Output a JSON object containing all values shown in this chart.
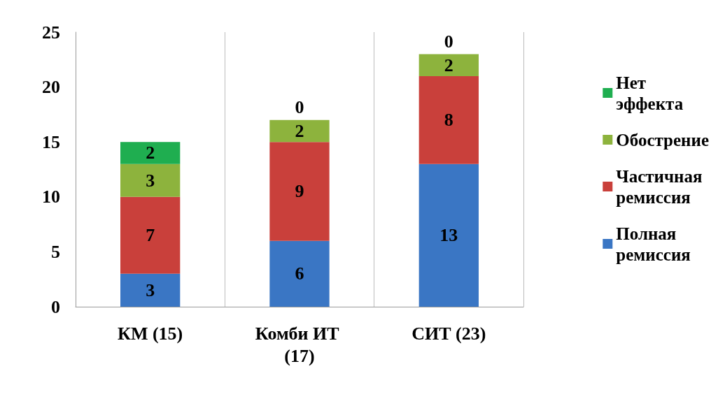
{
  "chart_data": {
    "type": "bar",
    "stacked": true,
    "categories": [
      "КМ (15)",
      "Комби ИТ (17)",
      "СИТ (23)"
    ],
    "series": [
      {
        "name": "Полная ремиссия",
        "color": "#3a76c4",
        "values": [
          3,
          6,
          13
        ]
      },
      {
        "name": "Частичная ремиссия",
        "color": "#c9403b",
        "values": [
          7,
          9,
          8
        ]
      },
      {
        "name": "Обострение",
        "color": "#8db33d",
        "values": [
          3,
          2,
          2
        ]
      },
      {
        "name": "Нет эффекта",
        "color": "#1fae50",
        "values": [
          2,
          0,
          0
        ]
      }
    ],
    "ylim": [
      0,
      25
    ],
    "yticks": [
      0,
      5,
      10,
      15,
      20,
      25
    ],
    "grid": "x",
    "legend": "right",
    "data_labels": true
  }
}
